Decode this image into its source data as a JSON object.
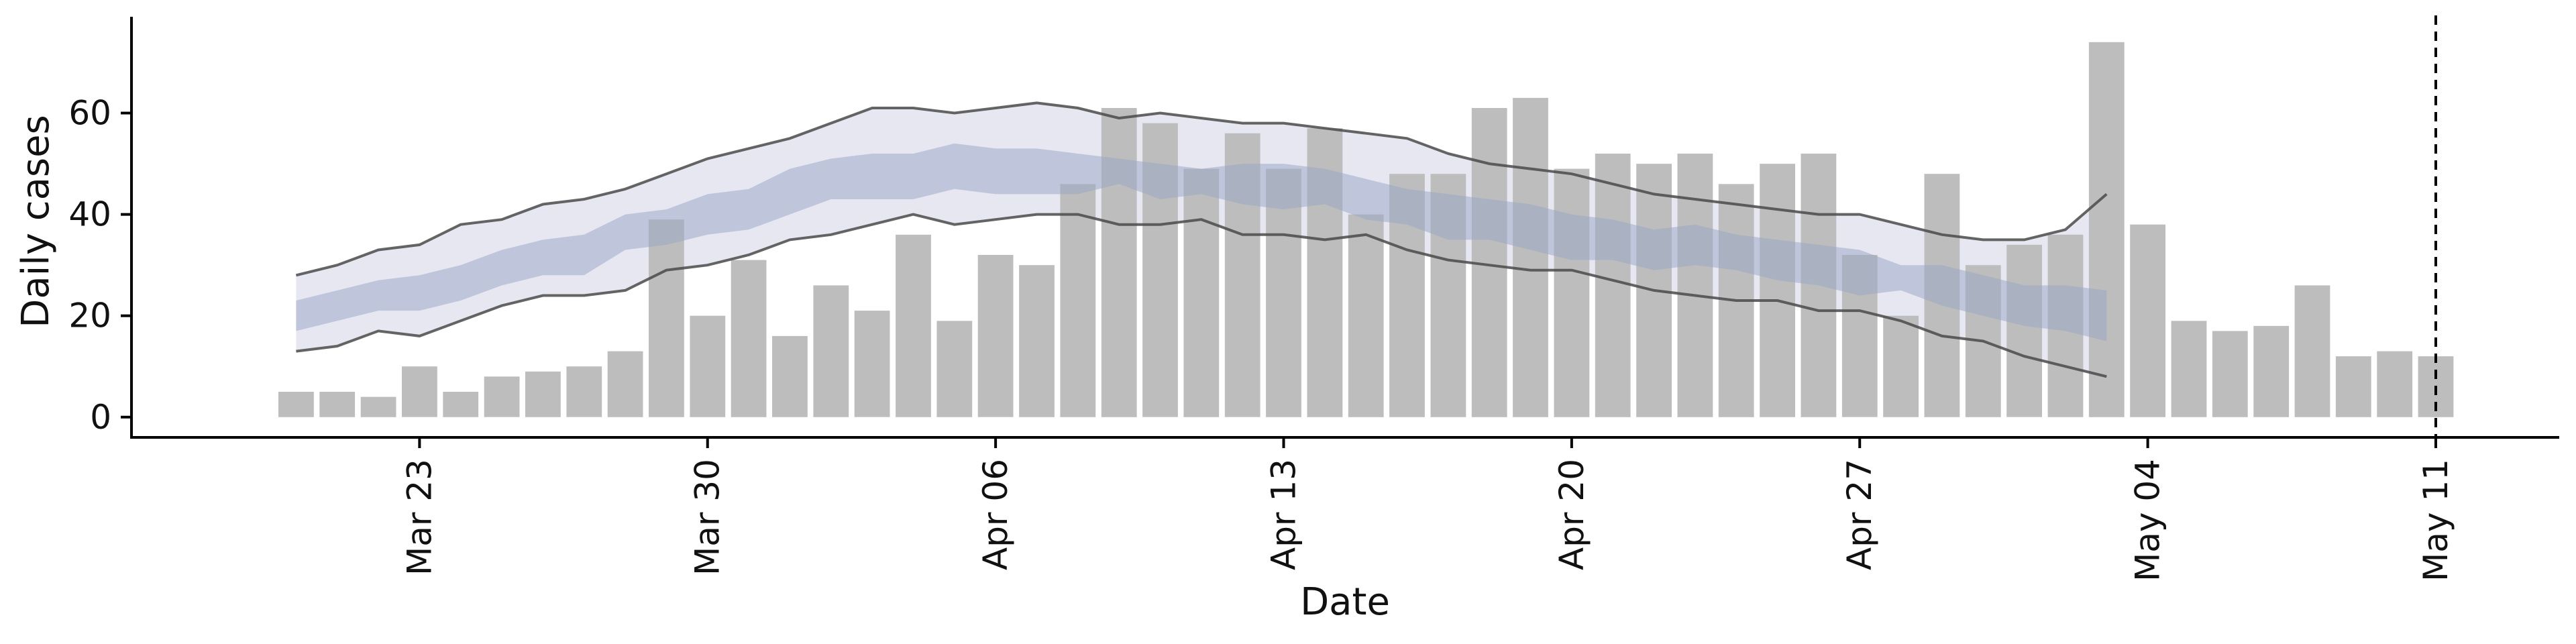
{
  "chart_data": {
    "type": "bar",
    "title": "",
    "xlabel": "Date",
    "ylabel": "Daily cases",
    "ylim": [
      -4,
      79
    ],
    "yticks": [
      0,
      20,
      40,
      60
    ],
    "xlim": [
      "2020-03-16",
      "2020-05-14"
    ],
    "xticks": [
      {
        "date": "2020-03-23",
        "label": "Mar 23"
      },
      {
        "date": "2020-03-30",
        "label": "Mar 30"
      },
      {
        "date": "2020-04-06",
        "label": "Apr 06"
      },
      {
        "date": "2020-04-13",
        "label": "Apr 13"
      },
      {
        "date": "2020-04-20",
        "label": "Apr 20"
      },
      {
        "date": "2020-04-27",
        "label": "Apr 27"
      },
      {
        "date": "2020-05-04",
        "label": "May 04"
      },
      {
        "date": "2020-05-11",
        "label": "May 11"
      }
    ],
    "grid": false,
    "vline": {
      "date": "2020-05-11",
      "style": "dashed",
      "color": "#000000"
    },
    "colors": {
      "bars": "#bdbdbd",
      "outer_band": "#c9cadf",
      "inner_band": "#97a6c6",
      "band_edge": "#4a4a4a",
      "axis": "#000000"
    },
    "bars": {
      "start_date": "2020-03-20",
      "values": [
        5,
        5,
        4,
        10,
        5,
        8,
        9,
        10,
        13,
        39,
        20,
        31,
        16,
        26,
        21,
        36,
        19,
        32,
        30,
        46,
        61,
        58,
        49,
        56,
        49,
        57,
        40,
        48,
        48,
        61,
        63,
        49,
        52,
        50,
        52,
        46,
        50,
        52,
        32,
        20,
        48,
        30,
        34,
        36,
        74,
        38,
        19,
        17,
        18,
        26,
        12,
        13,
        12
      ]
    },
    "bands": {
      "start_date": "2020-03-20",
      "outer_upper": [
        28,
        30,
        33,
        34,
        38,
        39,
        42,
        43,
        45,
        48,
        51,
        53,
        55,
        58,
        61,
        61,
        60,
        61,
        62,
        61,
        59,
        60,
        59,
        58,
        58,
        57,
        56,
        55,
        52,
        50,
        49,
        48,
        46,
        44,
        43,
        42,
        41,
        40,
        40,
        38,
        36,
        35,
        35,
        37,
        44
      ],
      "outer_lower": [
        13,
        14,
        17,
        16,
        19,
        22,
        24,
        24,
        25,
        29,
        30,
        32,
        35,
        36,
        38,
        40,
        38,
        39,
        40,
        40,
        38,
        38,
        39,
        36,
        36,
        35,
        36,
        33,
        31,
        30,
        29,
        29,
        27,
        25,
        24,
        23,
        23,
        21,
        21,
        19,
        16,
        15,
        12,
        10,
        8
      ],
      "inner_upper": [
        23,
        25,
        27,
        28,
        30,
        33,
        35,
        36,
        40,
        41,
        44,
        45,
        49,
        51,
        52,
        52,
        54,
        53,
        53,
        52,
        51,
        50,
        49,
        50,
        50,
        49,
        47,
        45,
        44,
        43,
        42,
        40,
        39,
        37,
        38,
        36,
        35,
        34,
        33,
        30,
        30,
        28,
        26,
        26,
        25
      ],
      "inner_lower": [
        17,
        19,
        21,
        21,
        23,
        26,
        28,
        28,
        33,
        34,
        36,
        37,
        40,
        43,
        43,
        43,
        45,
        44,
        44,
        44,
        46,
        43,
        44,
        42,
        41,
        42,
        39,
        38,
        35,
        35,
        33,
        31,
        31,
        29,
        30,
        29,
        27,
        26,
        24,
        25,
        22,
        20,
        18,
        17,
        15
      ]
    }
  }
}
